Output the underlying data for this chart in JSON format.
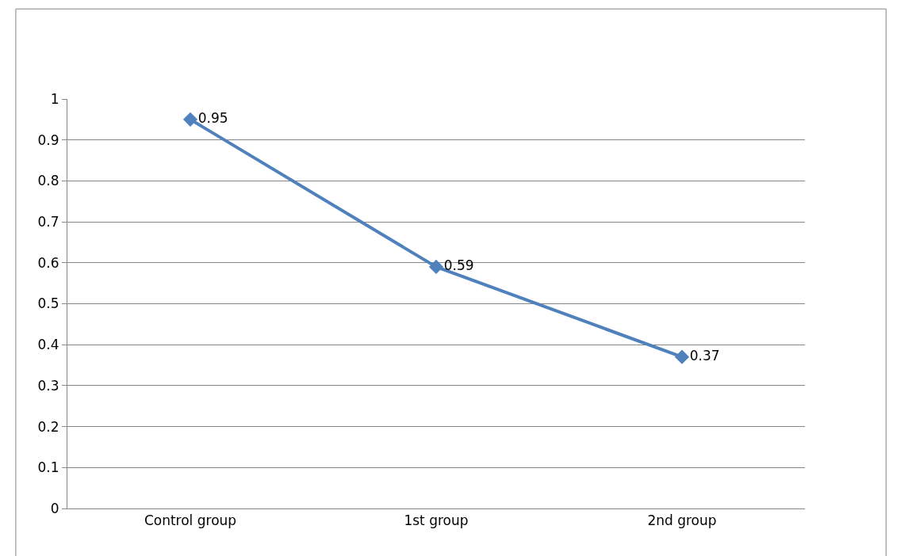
{
  "chart_data": {
    "type": "line",
    "categories": [
      "Control group",
      "1st group",
      "2nd group"
    ],
    "series": [
      {
        "color": "#4f81bd",
        "values": [
          0.95,
          0.59,
          0.37
        ]
      }
    ],
    "ylim": [
      0,
      1
    ],
    "yticks": [
      0,
      0.1,
      0.2,
      0.3,
      0.4,
      0.5,
      0.6,
      0.7,
      0.8,
      0.9,
      1
    ],
    "grid": "y",
    "marker": "diamond",
    "line_style": "solid",
    "data_labels": true
  }
}
